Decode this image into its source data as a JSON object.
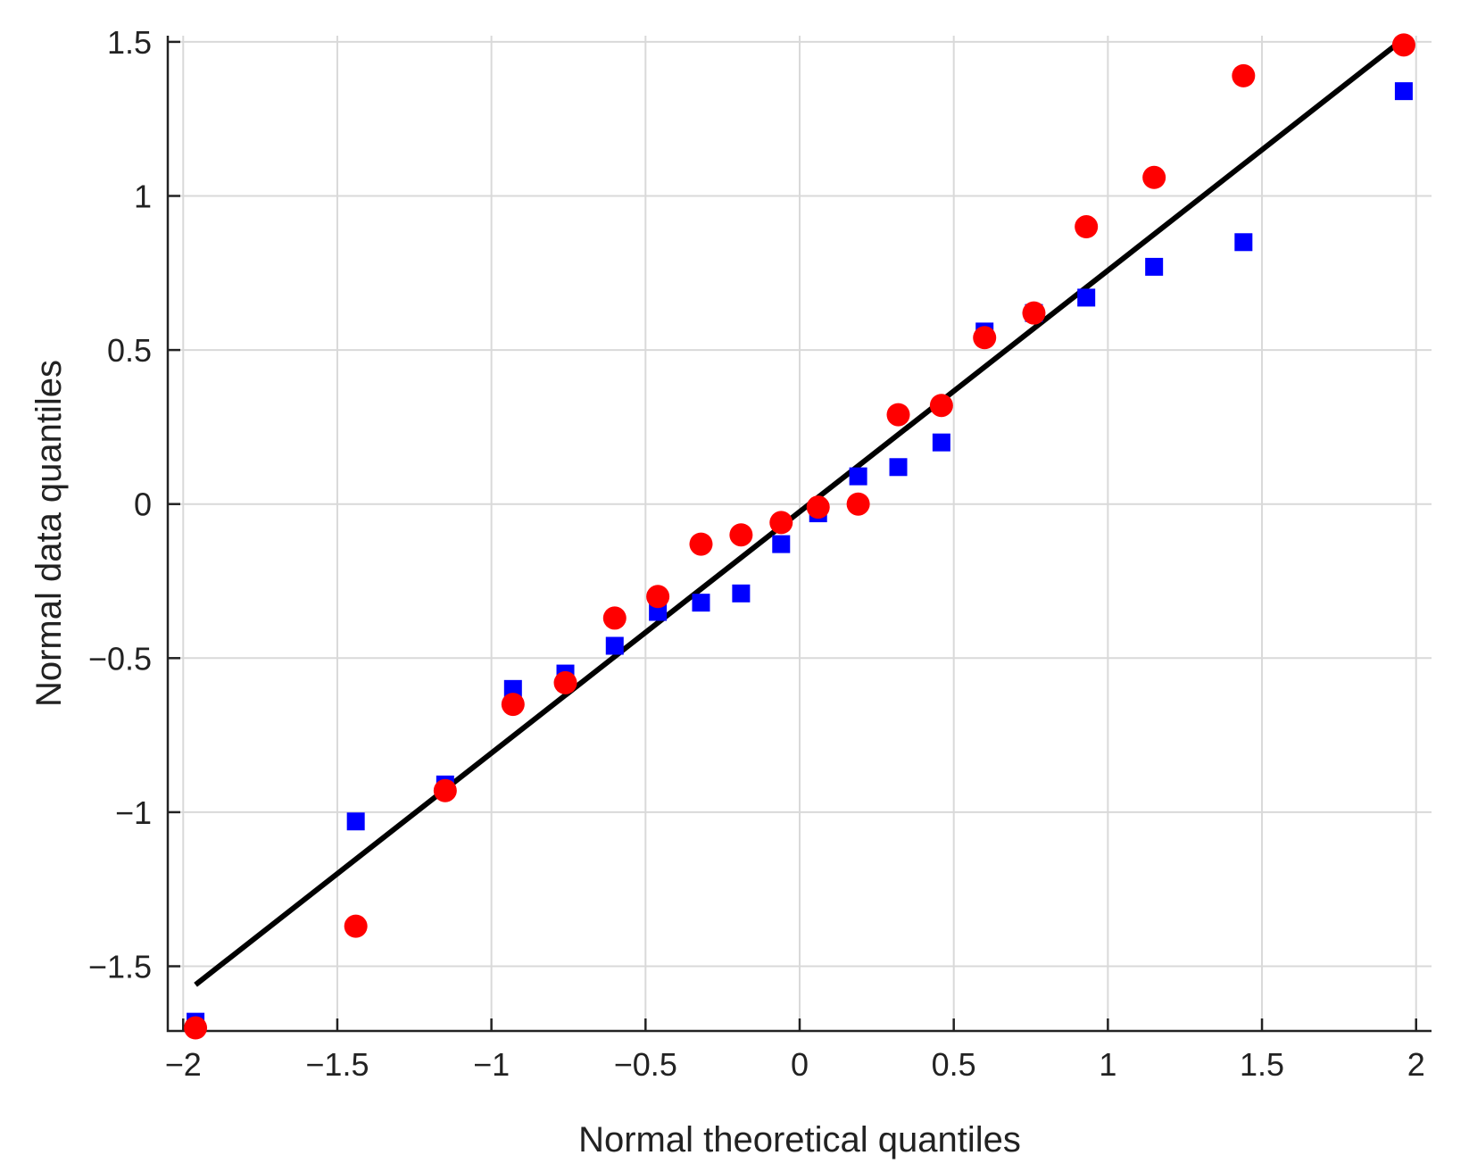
{
  "chart_data": {
    "type": "scatter",
    "title": "",
    "xlabel": "Normal theoretical quantiles",
    "ylabel": "Normal data quantiles",
    "xlim": [
      -2.05,
      2.05
    ],
    "ylim": [
      -1.71,
      1.52
    ],
    "grid": true,
    "x_ticks": [
      -2,
      -1.5,
      -1,
      -0.5,
      0,
      0.5,
      1,
      1.5,
      2
    ],
    "y_ticks": [
      -1.5,
      -1,
      -0.5,
      0,
      0.5,
      1,
      1.5
    ],
    "x_tick_labels": [
      "−2",
      "−1.5",
      "−1",
      "−0.5",
      "0",
      "0.5",
      "1",
      "1.5",
      "2"
    ],
    "y_tick_labels": [
      "−1.5",
      "−1",
      "−0.5",
      "0",
      "0.5",
      "1",
      "1.5"
    ],
    "series": [
      {
        "marker": "square",
        "color": "#0000ff",
        "x": [
          -1.96,
          -1.44,
          -1.15,
          -0.93,
          -0.76,
          -0.6,
          -0.46,
          -0.32,
          -0.19,
          -0.06,
          0.06,
          0.19,
          0.32,
          0.46,
          0.6,
          0.76,
          0.93,
          1.15,
          1.44,
          1.96
        ],
        "y": [
          -1.68,
          -1.03,
          -0.91,
          -0.6,
          -0.55,
          -0.46,
          -0.35,
          -0.32,
          -0.29,
          -0.13,
          -0.03,
          0.09,
          0.12,
          0.2,
          0.56,
          0.62,
          0.67,
          0.77,
          0.85,
          1.34
        ]
      },
      {
        "marker": "circle",
        "color": "#ff0000",
        "x": [
          -1.96,
          -1.44,
          -1.15,
          -0.93,
          -0.76,
          -0.6,
          -0.46,
          -0.32,
          -0.19,
          -0.06,
          0.06,
          0.19,
          0.32,
          0.46,
          0.6,
          0.76,
          0.93,
          1.15,
          1.44,
          1.96
        ],
        "y": [
          -1.7,
          -1.37,
          -0.93,
          -0.65,
          -0.58,
          -0.37,
          -0.3,
          -0.13,
          -0.1,
          -0.06,
          -0.01,
          0.0,
          0.29,
          0.32,
          0.54,
          0.62,
          0.9,
          1.06,
          1.39,
          1.49
        ]
      },
      {
        "marker": "line",
        "color": "#000000",
        "x": [
          -1.96,
          1.96
        ],
        "y": [
          -1.56,
          1.51
        ]
      }
    ]
  }
}
